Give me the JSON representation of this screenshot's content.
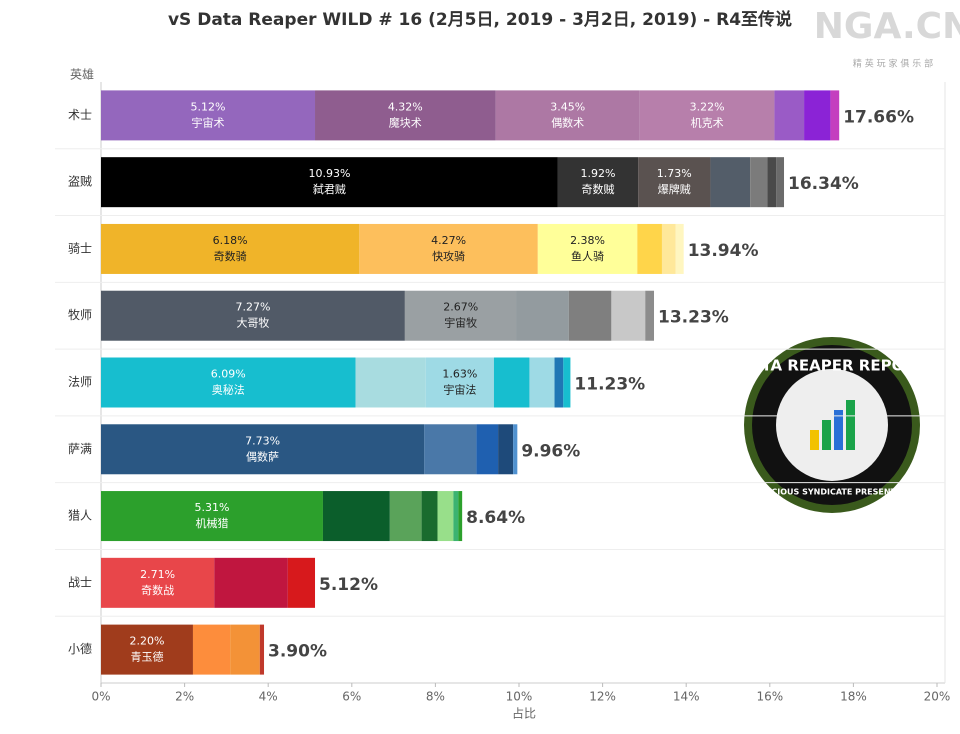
{
  "chart_data": {
    "type": "stacked-bar",
    "title": "vS Data Reaper WILD # 16 (2月5日, 2019 - 3月2日, 2019) - R4至传说",
    "y_label": "英雄",
    "x_label": "占比",
    "xlim": [
      0,
      20
    ],
    "xticks": [
      {
        "value": 0,
        "label": "0%"
      },
      {
        "value": 2,
        "label": "2%"
      },
      {
        "value": 4,
        "label": "4%"
      },
      {
        "value": 6,
        "label": "6%"
      },
      {
        "value": 8,
        "label": "8%"
      },
      {
        "value": 10,
        "label": "10%"
      },
      {
        "value": 12,
        "label": "12%"
      },
      {
        "value": 14,
        "label": "14%"
      },
      {
        "value": 16,
        "label": "16%"
      },
      {
        "value": 18,
        "label": "18%"
      },
      {
        "value": 20,
        "label": "20%"
      }
    ],
    "grid": false,
    "categories": [
      "术士",
      "盗贼",
      "骑士",
      "牧师",
      "法师",
      "萨满",
      "猎人",
      "战士",
      "小德"
    ],
    "totals": [
      17.66,
      16.34,
      13.94,
      13.23,
      11.23,
      9.96,
      8.64,
      5.12,
      3.9
    ],
    "total_labels": [
      "17.66%",
      "16.34%",
      "13.94%",
      "13.23%",
      "11.23%",
      "9.96%",
      "8.64%",
      "5.12%",
      "3.90%"
    ],
    "rows": [
      {
        "segments": [
          {
            "value": 5.12,
            "value_label": "5.12%",
            "name": "宇宙术",
            "color": "#9467bd"
          },
          {
            "value": 4.32,
            "value_label": "4.32%",
            "name": "魔块术",
            "color": "#8f5d8f"
          },
          {
            "value": 3.45,
            "value_label": "3.45%",
            "name": "偶数术",
            "color": "#ad78a4"
          },
          {
            "value": 3.22,
            "value_label": "3.22%",
            "name": "机克术",
            "color": "#b77fab"
          },
          {
            "value": 0.71,
            "color": "#9a5bc6"
          },
          {
            "value": 0.63,
            "color": "#8b23d6"
          },
          {
            "value": 0.21,
            "color": "#c43fbf"
          }
        ]
      },
      {
        "segments": [
          {
            "value": 10.93,
            "value_label": "10.93%",
            "name": "弑君贼",
            "color": "#000000"
          },
          {
            "value": 1.92,
            "value_label": "1.92%",
            "name": "奇数贼",
            "color": "#333333"
          },
          {
            "value": 1.73,
            "value_label": "1.73%",
            "name": "爆牌贼",
            "color": "#5a5250"
          },
          {
            "value": 0.95,
            "color": "#535d69"
          },
          {
            "value": 0.41,
            "color": "#7b7b7b"
          },
          {
            "value": 0.21,
            "color": "#4a4a4a"
          },
          {
            "value": 0.19,
            "color": "#6b6b6b"
          }
        ]
      },
      {
        "segments": [
          {
            "value": 6.18,
            "value_label": "6.18%",
            "name": "奇数骑",
            "color": "#f0b429"
          },
          {
            "value": 4.27,
            "value_label": "4.27%",
            "name": "快攻骑",
            "color": "#fdbf5c"
          },
          {
            "value": 2.38,
            "value_label": "2.38%",
            "name": "鱼人骑",
            "color": "#ffff99"
          },
          {
            "value": 0.59,
            "color": "#ffd54a"
          },
          {
            "value": 0.33,
            "color": "#ffe89a"
          },
          {
            "value": 0.19,
            "color": "#fff6c0"
          }
        ]
      },
      {
        "segments": [
          {
            "value": 7.27,
            "value_label": "7.27%",
            "name": "大哥牧",
            "color": "#515a67"
          },
          {
            "value": 2.67,
            "value_label": "2.67%",
            "name": "宇宙牧",
            "color": "#9aa0a3"
          },
          {
            "value": 1.25,
            "color": "#939b9f"
          },
          {
            "value": 1.02,
            "color": "#7f7f7f"
          },
          {
            "value": 0.81,
            "color": "#c8c8c8"
          },
          {
            "value": 0.21,
            "color": "#8c8c8c"
          }
        ]
      },
      {
        "segments": [
          {
            "value": 6.09,
            "value_label": "6.09%",
            "name": "奥秘法",
            "color": "#17becf"
          },
          {
            "value": 1.68,
            "color": "#a8dce0"
          },
          {
            "value": 1.63,
            "value_label": "1.63%",
            "name": "宇宙法",
            "color": "#9edae5"
          },
          {
            "value": 0.85,
            "color": "#17becf"
          },
          {
            "value": 0.6,
            "color": "#9edae5"
          },
          {
            "value": 0.21,
            "color": "#1f77b4"
          },
          {
            "value": 0.17,
            "color": "#17becf"
          }
        ]
      },
      {
        "segments": [
          {
            "value": 7.73,
            "value_label": "7.73%",
            "name": "偶数萨",
            "color": "#2a5783"
          },
          {
            "value": 1.25,
            "color": "#4a78a8"
          },
          {
            "value": 0.52,
            "color": "#1f60b0"
          },
          {
            "value": 0.36,
            "color": "#1e4a7a"
          },
          {
            "value": 0.1,
            "color": "#4f91d0"
          }
        ]
      },
      {
        "segments": [
          {
            "value": 5.31,
            "value_label": "5.31%",
            "name": "机械猎",
            "color": "#2ca02c"
          },
          {
            "value": 1.6,
            "color": "#0b5e2b"
          },
          {
            "value": 0.76,
            "color": "#5aa35a"
          },
          {
            "value": 0.38,
            "color": "#1a6b2e"
          },
          {
            "value": 0.38,
            "color": "#98df8a"
          },
          {
            "value": 0.12,
            "color": "#3cb371"
          },
          {
            "value": 0.09,
            "color": "#2ca02c"
          }
        ]
      },
      {
        "segments": [
          {
            "value": 2.71,
            "value_label": "2.71%",
            "name": "奇数战",
            "color": "#e8464a"
          },
          {
            "value": 1.76,
            "color": "#c0163f"
          },
          {
            "value": 0.65,
            "color": "#d7191c"
          }
        ]
      },
      {
        "segments": [
          {
            "value": 2.2,
            "value_label": "2.20%",
            "name": "青玉德",
            "color": "#a03c1c"
          },
          {
            "value": 0.89,
            "color": "#fd8d3c"
          },
          {
            "value": 0.71,
            "color": "#f39237"
          },
          {
            "value": 0.1,
            "color": "#c0392b"
          }
        ]
      }
    ]
  },
  "watermark": {
    "text": "NGA.CN",
    "subtitle": "精 英 玩 家 俱 乐 部"
  },
  "logo": {
    "text": "DATA REAPER REPORT",
    "subtitle": "VICIOUS SYNDICATE PRESENTS"
  }
}
